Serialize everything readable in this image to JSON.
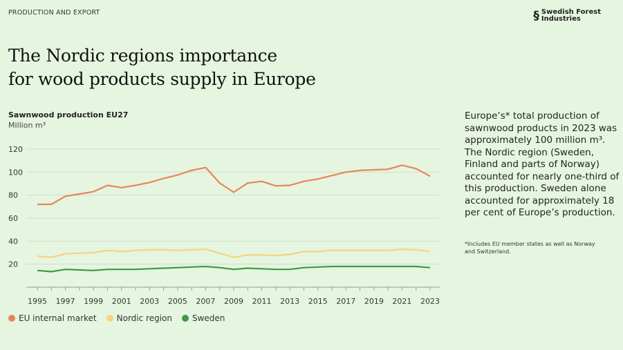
{
  "header": {
    "kicker": "PRODUCTION AND EXPORT",
    "logo_line1": "Swedish Forest",
    "logo_line2": "Industries",
    "title_line1": "The Nordic regions importance",
    "title_line2": "for wood products supply in Europe"
  },
  "side": {
    "text": "Europe’s* total production of sawnwood products in 2023 was approximately 100 million m³. The Nordic region (Sweden, Finland and parts of Norway) accounted for nearly one-third of this production. Sweden alone accounted for approximately 18 per cent of Europe’s production.",
    "footnote": "*Includes EU member states as well as Norway and Switzerland."
  },
  "chart_data": {
    "type": "line",
    "title": "Sawnwood production EU27",
    "ylabel": "Million m³",
    "ylim": [
      0,
      120
    ],
    "yticks": [
      20,
      40,
      60,
      80,
      100,
      120
    ],
    "grid": true,
    "legend": "bottom-left",
    "x": [
      1995,
      1996,
      1997,
      1998,
      1999,
      2000,
      2001,
      2002,
      2003,
      2004,
      2005,
      2006,
      2007,
      2008,
      2009,
      2010,
      2011,
      2012,
      2013,
      2014,
      2015,
      2016,
      2017,
      2018,
      2019,
      2020,
      2021,
      2022,
      2023
    ],
    "xticklabels": [
      "1995",
      "1997",
      "1999",
      "2001",
      "2003",
      "2005",
      "2007",
      "2009",
      "2011",
      "2013",
      "2015",
      "2017",
      "2019",
      "2021",
      "2023"
    ],
    "series": [
      {
        "name": "EU internal market",
        "color": "#e8845a",
        "values": [
          72,
          72,
          79,
          81,
          83,
          88.5,
          86.5,
          88.5,
          91,
          94.5,
          97.5,
          101.5,
          104,
          90.5,
          82.5,
          90.5,
          92,
          88,
          88.5,
          92,
          94,
          97,
          100,
          101.5,
          102,
          102.5,
          106,
          103,
          96.5
        ]
      },
      {
        "name": "Nordic region",
        "color": "#f6d37e",
        "values": [
          27,
          26,
          29,
          29.5,
          30,
          32,
          31,
          32,
          32.5,
          32.5,
          32,
          32.5,
          33,
          29.5,
          26,
          28,
          28,
          27.5,
          28.5,
          31,
          31,
          32,
          32,
          32,
          32,
          32,
          33,
          32.5,
          31
        ]
      },
      {
        "name": "Sweden",
        "color": "#3d9a45",
        "values": [
          14.5,
          13.5,
          15.5,
          15,
          14.5,
          15.5,
          15.5,
          15.5,
          16,
          16.5,
          17,
          17.5,
          18,
          17,
          15.5,
          16.5,
          16,
          15.5,
          15.5,
          17,
          17.5,
          18,
          18,
          18,
          18,
          18,
          18,
          18,
          17
        ]
      }
    ]
  }
}
